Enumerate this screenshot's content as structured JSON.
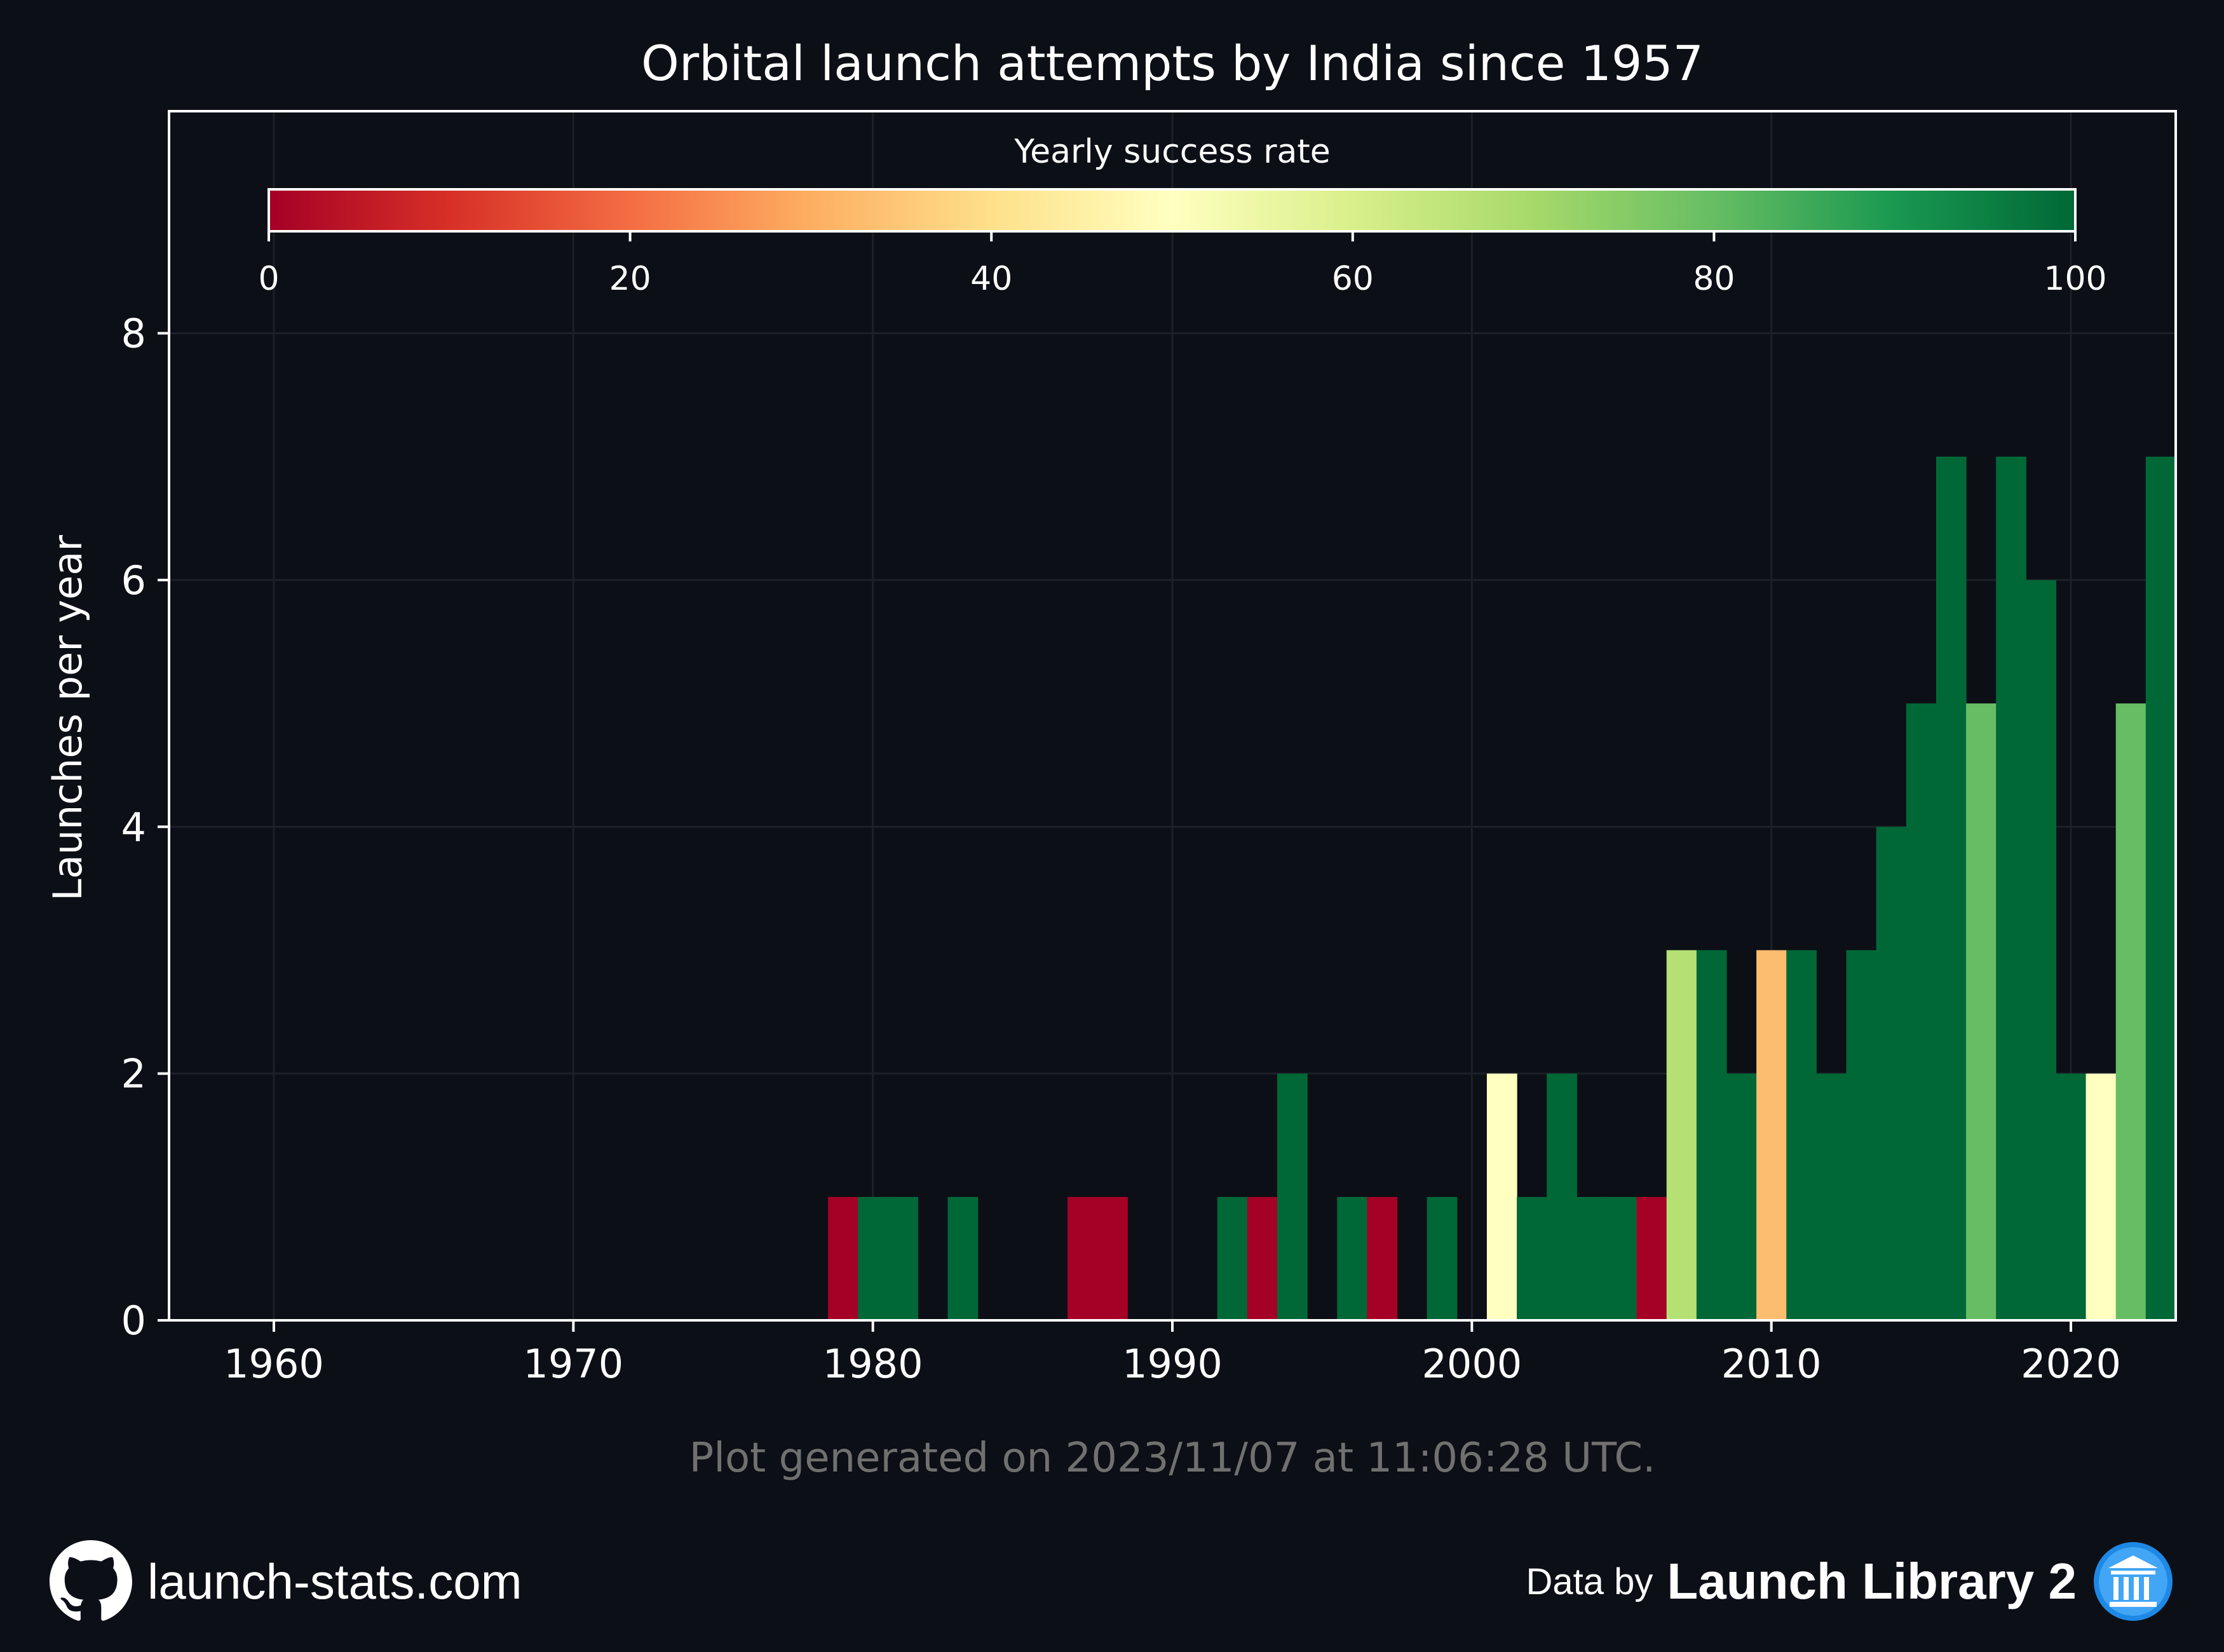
{
  "chart_data": {
    "type": "bar",
    "title": "Orbital launch attempts by India since 1957",
    "xlabel": "",
    "ylabel": "Launches per year",
    "xlim": [
      1956.5,
      2023.5
    ],
    "ylim": [
      0,
      9.8
    ],
    "x_ticks": [
      1960,
      1970,
      1980,
      1990,
      2000,
      2010,
      2020
    ],
    "y_ticks": [
      0,
      2,
      4,
      6,
      8
    ],
    "grid": true,
    "x": [
      1979,
      1980,
      1981,
      1983,
      1987,
      1988,
      1992,
      1993,
      1994,
      1996,
      1997,
      1999,
      2001,
      2002,
      2003,
      2004,
      2005,
      2006,
      2007,
      2008,
      2009,
      2010,
      2011,
      2012,
      2013,
      2014,
      2015,
      2016,
      2017,
      2018,
      2019,
      2020,
      2021,
      2022,
      2023
    ],
    "values": [
      1,
      1,
      1,
      1,
      1,
      1,
      1,
      1,
      2,
      1,
      1,
      1,
      2,
      1,
      2,
      1,
      1,
      1,
      3,
      3,
      2,
      3,
      3,
      2,
      3,
      4,
      5,
      7,
      5,
      7,
      6,
      2,
      2,
      5,
      7
    ],
    "success_rate": [
      0,
      100,
      100,
      100,
      0,
      0,
      100,
      0,
      100,
      100,
      0,
      100,
      50,
      100,
      100,
      100,
      100,
      0,
      67,
      100,
      100,
      33,
      100,
      100,
      100,
      100,
      100,
      100,
      80,
      100,
      100,
      100,
      50,
      80,
      100
    ],
    "colorbar": {
      "label": "Yearly success rate",
      "ticks": [
        0,
        20,
        40,
        60,
        80,
        100
      ],
      "colors": [
        "#a50026",
        "#d73027",
        "#f46d43",
        "#fdae61",
        "#fee08b",
        "#ffffbf",
        "#d9ef8b",
        "#a6d96a",
        "#66bd63",
        "#1a9850",
        "#006837"
      ]
    }
  },
  "footer": {
    "generated": "Plot generated on 2023/11/07 at 11:06:28 UTC.",
    "site": "launch-stats.com",
    "data_by": "Data by",
    "library": "Launch Library 2",
    "github_icon": "github-icon",
    "library_icon": "institution-icon"
  },
  "colors": {
    "background": "#0c0f16",
    "axes": "#ffffff",
    "grid": "#1c2029",
    "muted_text": "#707070"
  }
}
